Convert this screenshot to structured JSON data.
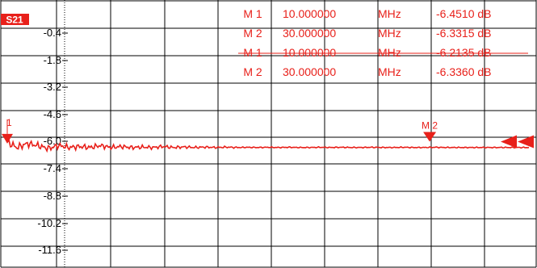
{
  "chart_data": {
    "type": "line",
    "trace_label": "S21",
    "y_ticks": [
      "-0.4",
      "-1.8",
      "-3.2",
      "-4.6",
      "-6.0",
      "-7.4",
      "-8.8",
      "-10.2",
      "-11.6"
    ],
    "ylim": [
      -13.0,
      1.0
    ],
    "x_range_mhz": [
      0,
      100
    ],
    "grid": true,
    "colors": {
      "trace": "#e8201a",
      "grid": "#000000",
      "label_bg": "#e8201a",
      "label_fg": "#ffffff"
    },
    "marker_table": [
      {
        "name": "M 1",
        "freq": "10.000000",
        "unit": "MHz",
        "value": "-6.4510 dB"
      },
      {
        "name": "M 2",
        "freq": "30.000000",
        "unit": "MHz",
        "value": "-6.3315 dB"
      },
      {
        "name": "M 1",
        "freq": "10.000000",
        "unit": "MHz",
        "value": "-6.2135 dB"
      },
      {
        "name": "M 2",
        "freq": "30.000000",
        "unit": "MHz",
        "value": "-6.3360 dB"
      }
    ],
    "markers_on_trace": [
      {
        "label": "M 2",
        "x_mhz": 81,
        "y_db": -6.0
      }
    ],
    "left_marker_label": "1",
    "series": [
      {
        "x": [
          0,
          2,
          4,
          6,
          8,
          10,
          12,
          14,
          16,
          18,
          20,
          22,
          24,
          26,
          28,
          30,
          32,
          34,
          36,
          38,
          40,
          42,
          44,
          46,
          48,
          50,
          52,
          54,
          56,
          58,
          60,
          62,
          64,
          66,
          68,
          70,
          72,
          74,
          76,
          78,
          80,
          82,
          84,
          86,
          88,
          90,
          92,
          94,
          96,
          98,
          100
        ],
        "y": [
          -6.0,
          -6.3,
          -6.1,
          -6.2,
          -6.35,
          -6.2,
          -6.3,
          -6.25,
          -6.3,
          -6.2,
          -6.3,
          -6.25,
          -6.3,
          -6.28,
          -6.3,
          -6.25,
          -6.3,
          -6.27,
          -6.3,
          -6.28,
          -6.3,
          -6.28,
          -6.3,
          -6.29,
          -6.3,
          -6.29,
          -6.3,
          -6.29,
          -6.3,
          -6.3,
          -6.29,
          -6.3,
          -6.29,
          -6.3,
          -6.3,
          -6.29,
          -6.3,
          -6.3,
          -6.29,
          -6.3,
          -6.3,
          -6.29,
          -6.3,
          -6.3,
          -6.3,
          -6.3,
          -6.3,
          -6.3,
          -6.3,
          -6.3,
          -6.3
        ]
      }
    ]
  }
}
